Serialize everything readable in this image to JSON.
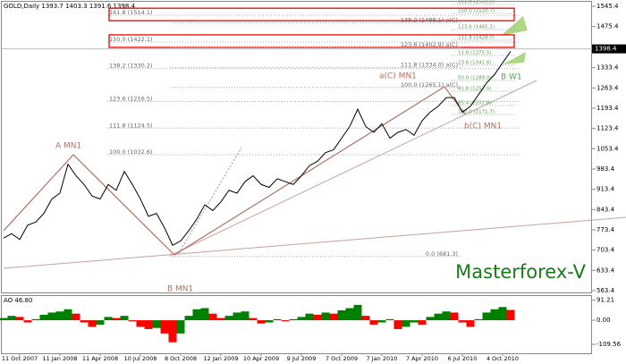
{
  "chart_data": [
    {
      "type": "line",
      "title": "GOLD,Daily  1393.7 1403.3 1391.6 1398.4",
      "categories": [
        null,
        null,
        "11 Oct 2007",
        null,
        null,
        null,
        null,
        "11 Jan 2008",
        null,
        null,
        null,
        null,
        "11 Apr 2008",
        null,
        null,
        null,
        null,
        "10 Jul 2008",
        null,
        null,
        null,
        null,
        "8 Oct 2008",
        null,
        null,
        null,
        null,
        "12 Jan 2009",
        null,
        null,
        null,
        null,
        "10 Apr 2009",
        null,
        null,
        null,
        null,
        "9 Jul 2009",
        null,
        null,
        null,
        null,
        "7 Oct 2009",
        null,
        null,
        null,
        null,
        "7 Jan 2010",
        null,
        null,
        null,
        null,
        "7 Apr 2010",
        null,
        null,
        null,
        null,
        "6 Jul 2010",
        null,
        null,
        null,
        null,
        "4 Oct 2010",
        null
      ],
      "values": [
        745,
        760,
        740,
        790,
        800,
        830,
        880,
        900,
        1000,
        960,
        930,
        890,
        880,
        930,
        910,
        975,
        930,
        880,
        820,
        830,
        780,
        720,
        735,
        770,
        810,
        860,
        840,
        870,
        910,
        900,
        940,
        960,
        930,
        920,
        950,
        940,
        930,
        960,
        995,
        1010,
        1040,
        1050,
        1090,
        1130,
        1190,
        1130,
        1110,
        1140,
        1090,
        1110,
        1120,
        1100,
        1150,
        1180,
        1200,
        1230,
        1230,
        1180,
        1200,
        1240,
        1280,
        1310,
        1350,
        1390
      ],
      "color": "#000000",
      "ylim": [
        554,
        1561
      ],
      "yticks": [
        563.4,
        633.4,
        703.4,
        773.4,
        843.4,
        913.4,
        983.4,
        1053.4,
        1123.4,
        1193.4,
        1263.4,
        1333.4,
        1475.4,
        1545.4
      ],
      "last_price": 1398.4,
      "fib_left": [
        {
          "text": "161.8 (1514.1)",
          "value": 1514.1
        },
        {
          "text": "150.0 (1422.1)",
          "value": 1422.1
        },
        {
          "text": "138.2 (1330.2)",
          "value": 1330.2
        },
        {
          "text": "123.6 (1216.5)",
          "value": 1216.5
        },
        {
          "text": "111.8 (1124.5)",
          "value": 1124.5
        },
        {
          "text": "100.0 (1032.6)",
          "value": 1032.6
        }
      ],
      "fib_mid": [
        {
          "text": "138.2 (1488.1) a(C)",
          "value": 1488.1
        },
        {
          "text": "123.6 (1402.9) a(C)",
          "value": 1402.9
        },
        {
          "text": "111.8 (1334.0) a(C)",
          "value": 1334.0
        },
        {
          "text": "100.0 (1265.1) a(C)",
          "value": 1265.1
        },
        {
          "text": "0.0 (681.3)",
          "value": 681.3
        }
      ],
      "fib_right": [
        {
          "text": "161.8 (1551.5)",
          "value": 1551.5
        },
        {
          "text": "150.0 (1520.7)",
          "value": 1520.7
        },
        {
          "text": "123.6 (1465.1)",
          "value": 1465.1
        },
        {
          "text": "111.8 (1428.0)",
          "value": 1428.0
        },
        {
          "text": "11.8 (1375.5)",
          "value": 1375.5
        },
        {
          "text": "23.6 (1341.6)",
          "value": 1341.6
        },
        {
          "text": "50.0 (1289.0)",
          "value": 1289.0
        },
        {
          "text": "61.8 (1252.0)",
          "value": 1252.0
        },
        {
          "text": "85.4 (1202.6)",
          "value": 1202.6
        },
        {
          "text": "100.0 (1171.7)",
          "value": 1171.7
        }
      ],
      "wave_labels": [
        "A MN1",
        "B MN1",
        "a(C) MN1",
        "b(C) MN1",
        "B W1"
      ],
      "watermark": "Masterforex-V"
    },
    {
      "type": "bar",
      "title": "AO 46.80",
      "values": [
        10,
        20,
        15,
        -10,
        5,
        25,
        35,
        40,
        50,
        30,
        -10,
        -30,
        -20,
        15,
        10,
        20,
        -5,
        -30,
        -40,
        -35,
        -60,
        -100,
        -60,
        20,
        50,
        55,
        30,
        10,
        20,
        35,
        40,
        10,
        -15,
        -10,
        5,
        -5,
        5,
        15,
        30,
        25,
        35,
        30,
        45,
        55,
        70,
        20,
        -20,
        -10,
        5,
        -40,
        -30,
        -10,
        -20,
        15,
        30,
        40,
        35,
        -10,
        -30,
        5,
        35,
        50,
        60,
        46.8
      ],
      "up_color": "#008000",
      "down_color": "#ff0000",
      "ylim": [
        -150,
        110
      ],
      "yticks": [
        91.21,
        {
          "value": 0,
          "label": "0.00"
        },
        -109.56
      ]
    }
  ]
}
